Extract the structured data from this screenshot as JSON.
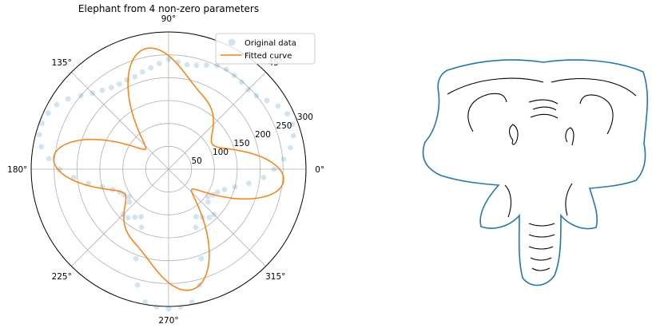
{
  "chart_data": [
    {
      "type": "scatter",
      "projection": "polar",
      "title": "Elephant from 4 non-zero parameters",
      "theta_unit": "degrees",
      "angle_tick_labels": [
        "0°",
        "45°",
        "90°",
        "135°",
        "180°",
        "225°",
        "270°",
        "315°"
      ],
      "radial_tick_labels": [
        "50",
        "100",
        "150",
        "200",
        "250",
        "300"
      ],
      "rlim": [
        0,
        300
      ],
      "grid": true,
      "legend": {
        "placement": "top-right",
        "entries": [
          "Original data",
          "Fitted curve"
        ]
      },
      "colors": {
        "original": "#1f77b4",
        "fitted": "#ff7f0e"
      },
      "series": [
        {
          "name": "Original data",
          "theta": [
            0,
            5,
            10,
            15,
            20,
            25,
            30,
            35,
            40,
            45,
            50,
            55,
            60,
            65,
            70,
            75,
            80,
            85,
            90,
            95,
            100,
            105,
            110,
            115,
            120,
            125,
            130,
            135,
            140,
            145,
            150,
            155,
            160,
            165,
            170,
            175,
            180,
            185,
            190,
            195,
            200,
            205,
            210,
            215,
            220,
            225,
            230,
            235,
            240,
            245,
            250,
            255,
            260,
            265,
            270,
            275,
            280,
            285,
            290,
            295,
            300,
            305,
            310,
            315,
            320,
            325,
            330,
            335,
            340,
            345,
            350,
            355
          ],
          "r": [
            230,
            252,
            270,
            282,
            288,
            286,
            276,
            262,
            250,
            246,
            248,
            250,
            252,
            250,
            242,
            235,
            232,
            235,
            240,
            232,
            225,
            220,
            215,
            215,
            215,
            218,
            225,
            235,
            250,
            268,
            282,
            290,
            294,
            292,
            282,
            262,
            238,
            208,
            178,
            150,
            130,
            118,
            112,
            105,
            112,
            140,
            138,
            128,
            120,
            140,
            208,
            262,
            295,
            302,
            305,
            302,
            295,
            262,
            208,
            140,
            120,
            128,
            138,
            140,
            112,
            105,
            112,
            118,
            130,
            150,
            178,
            208
          ]
        },
        {
          "name": "Fitted curve",
          "r_formula": "175 + 70*cos(4θ) + 38*cos(6θ + 60°) − 22*cos(2θ)"
        }
      ]
    },
    {
      "type": "line",
      "description_color": "#1f77b4"
    }
  ]
}
